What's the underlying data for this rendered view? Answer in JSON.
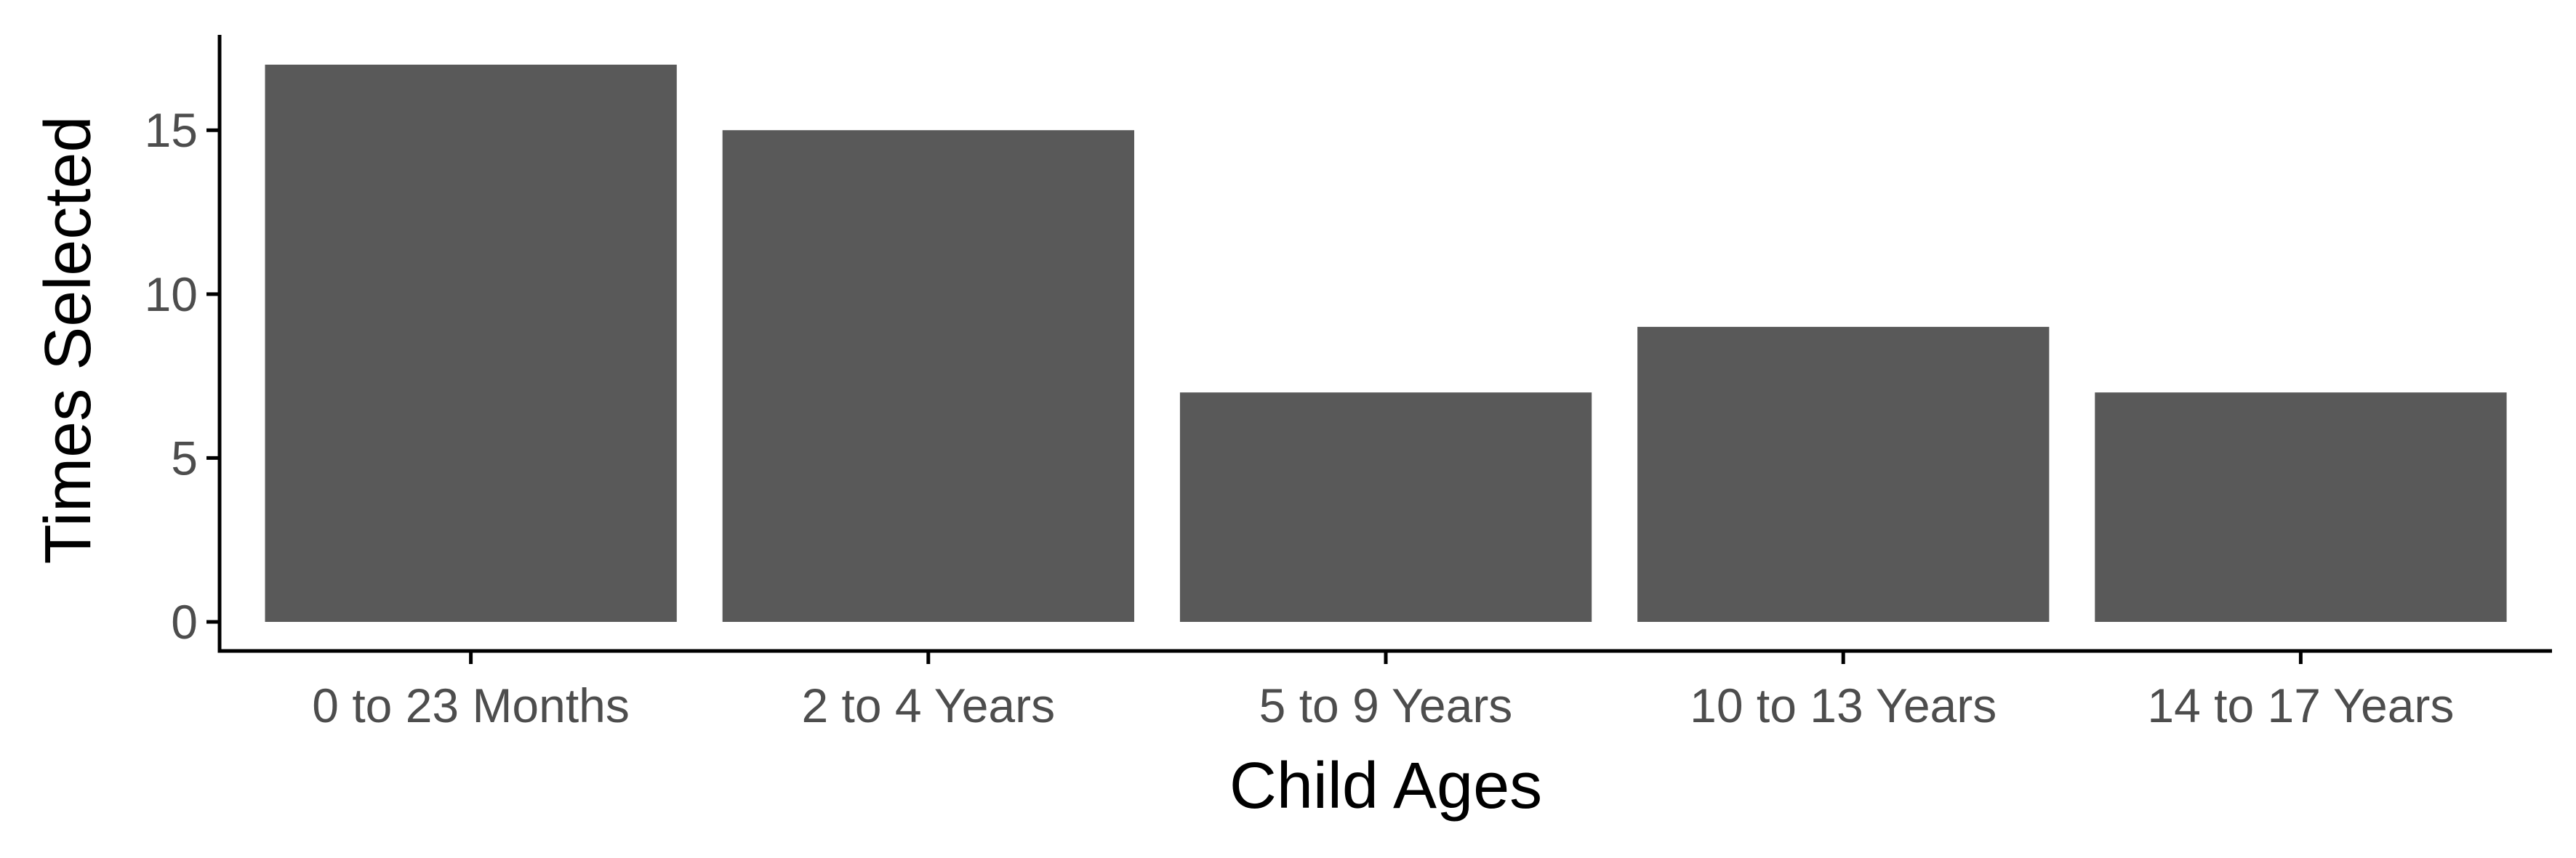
{
  "chart_data": {
    "type": "bar",
    "title": "",
    "xlabel": "Child Ages",
    "ylabel": "Times Selected",
    "categories": [
      "0 to 23 Months",
      "2 to 4 Years",
      "5 to 9 Years",
      "10 to 13 Years",
      "14 to 17 Years"
    ],
    "values": [
      17,
      15,
      7,
      9,
      7
    ],
    "ylim": [
      0,
      17.85
    ],
    "yticks": [
      0,
      5,
      10,
      15
    ],
    "grid": false,
    "legend": "none",
    "colors": {
      "bar": "#595959",
      "axis": "#000000",
      "tick_label": "#4d4d4d",
      "background": "#ffffff"
    }
  }
}
